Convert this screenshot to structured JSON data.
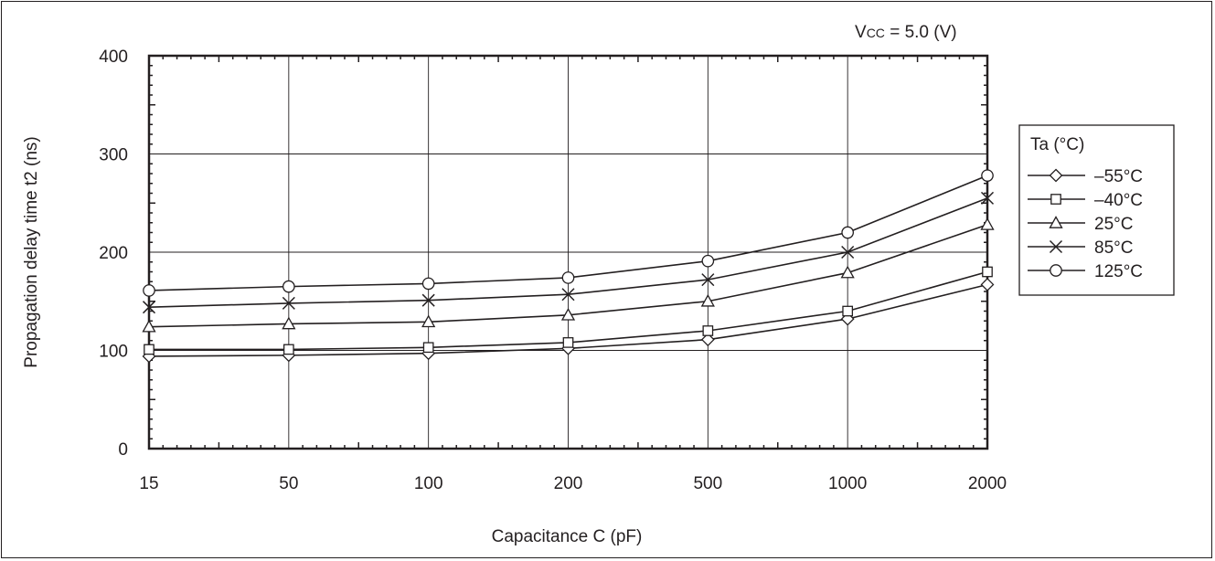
{
  "chart_data": {
    "type": "line",
    "title": "",
    "annotation": {
      "prefix": "V",
      "sub": "CC",
      "suffix": " = 5.0 (V)"
    },
    "xlabel": "Capacitance C (pF)",
    "ylabel": "Propagation delay time t2 (ns)",
    "categories": [
      "15",
      "50",
      "100",
      "200",
      "500",
      "1000",
      "2000"
    ],
    "x_scale": "categorical",
    "ylim": [
      0,
      400
    ],
    "yticks": [
      0,
      100,
      200,
      300,
      400
    ],
    "grid": true,
    "legend": {
      "title": "Ta (°C)",
      "position": "right"
    },
    "series": [
      {
        "name": "–55°C",
        "marker": "diamond",
        "values": [
          94,
          95,
          97,
          102,
          111,
          132,
          167
        ]
      },
      {
        "name": "–40°C",
        "marker": "square",
        "values": [
          101,
          101,
          103,
          108,
          120,
          140,
          180
        ]
      },
      {
        "name": "25°C",
        "marker": "triangle",
        "values": [
          124,
          127,
          129,
          136,
          150,
          179,
          228
        ]
      },
      {
        "name": "85°C",
        "marker": "x",
        "values": [
          144,
          148,
          151,
          157,
          172,
          200,
          255
        ]
      },
      {
        "name": "125°C",
        "marker": "circle",
        "values": [
          161,
          165,
          168,
          174,
          191,
          220,
          278
        ]
      }
    ],
    "line_color": "#231f20"
  }
}
